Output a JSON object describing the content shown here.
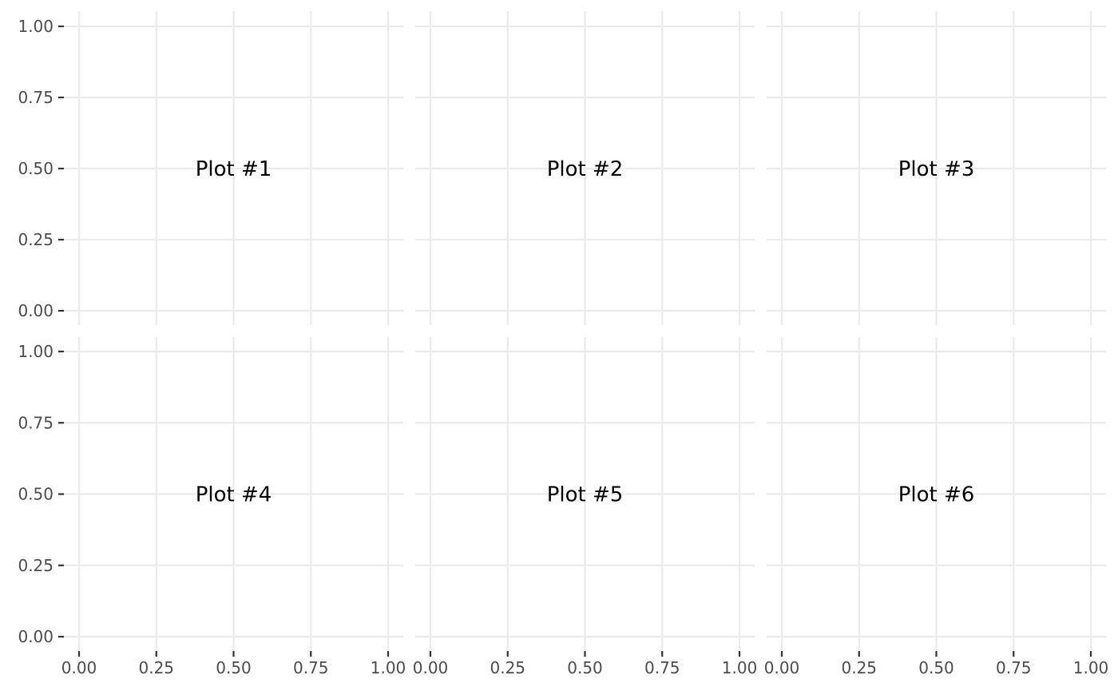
{
  "chart_data": {
    "type": "scatter",
    "layout": "2x3 grid of panels",
    "grid": true,
    "xlim": [
      0,
      1
    ],
    "ylim": [
      0,
      1
    ],
    "x_ticks": [
      "0.00",
      "0.25",
      "0.50",
      "0.75",
      "1.00"
    ],
    "y_ticks": [
      "0.00",
      "0.25",
      "0.50",
      "0.75",
      "1.00"
    ],
    "panels": [
      {
        "label": "Plot #1",
        "label_x": 0.5,
        "label_y": 0.5
      },
      {
        "label": "Plot #2",
        "label_x": 0.5,
        "label_y": 0.5
      },
      {
        "label": "Plot #3",
        "label_x": 0.5,
        "label_y": 0.5
      },
      {
        "label": "Plot #4",
        "label_x": 0.5,
        "label_y": 0.5
      },
      {
        "label": "Plot #5",
        "label_x": 0.5,
        "label_y": 0.5
      },
      {
        "label": "Plot #6",
        "label_x": 0.5,
        "label_y": 0.5
      }
    ],
    "colors": {
      "grid": "#ebebeb",
      "tick_label": "#4d4d4d",
      "tick_mark": "#333333",
      "annotation": "#000000"
    }
  }
}
